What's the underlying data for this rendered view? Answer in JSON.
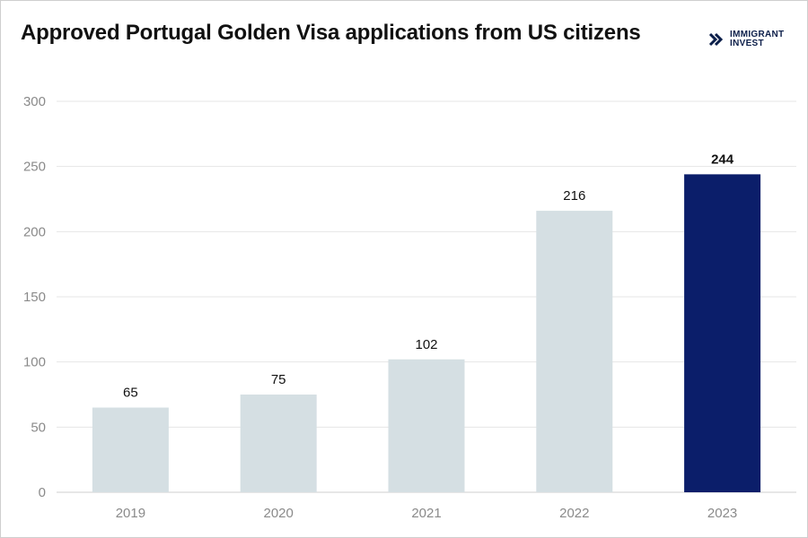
{
  "header": {
    "title": "Approved Portugal Golden Visa applications from US citizens",
    "logo_line1": "IMMIGRANT",
    "logo_line2": "INVEST",
    "logo_icon": "immigrant-invest-logo-icon"
  },
  "colors": {
    "bar_default": "#d5dfe3",
    "bar_highlight": "#0b1e6a",
    "grid": "#e6e6e6",
    "axis_text": "#8a8a8a"
  },
  "chart_data": {
    "type": "bar",
    "title": "Approved Portugal Golden Visa applications from US citizens",
    "categories": [
      "2019",
      "2020",
      "2021",
      "2022",
      "2023"
    ],
    "values": [
      65,
      75,
      102,
      216,
      244
    ],
    "value_labels": [
      "65",
      "75",
      "102",
      "216",
      "244"
    ],
    "highlight_index": 4,
    "ylim": [
      0,
      300
    ],
    "yticks": [
      0,
      50,
      100,
      150,
      200,
      250,
      300
    ],
    "xlabel": "",
    "ylabel": "",
    "grid": true,
    "legend": "none"
  }
}
